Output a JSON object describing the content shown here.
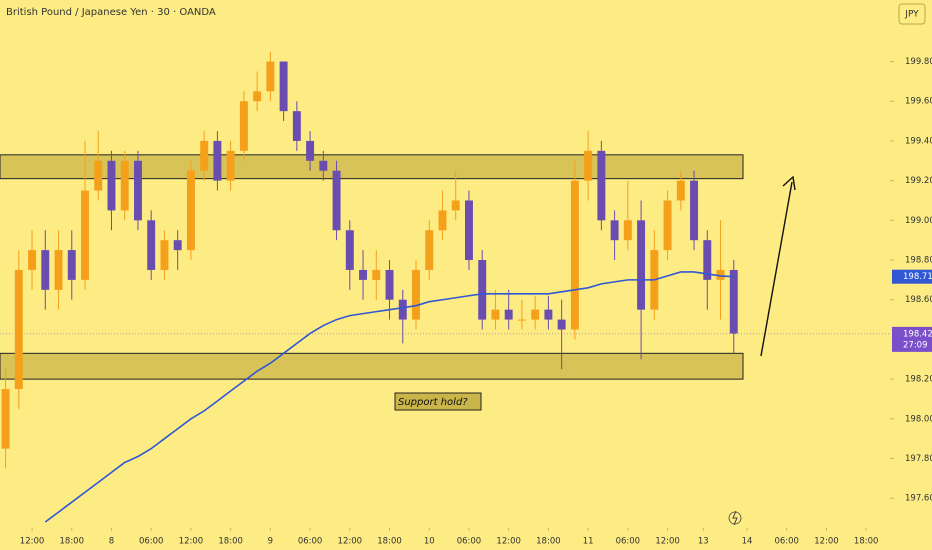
{
  "chart_data": {
    "type": "candlestick",
    "title": "British Pound / Japanese Yen · 30 · OANDA",
    "currency": "JPY",
    "x": [
      0,
      1,
      2,
      3,
      4,
      5,
      6,
      7,
      8,
      9,
      10,
      11,
      12,
      13,
      14,
      15,
      16,
      17,
      18,
      19,
      20,
      21,
      22,
      23,
      24,
      25,
      26,
      27,
      28,
      29,
      30,
      31,
      32,
      33,
      34,
      35,
      36,
      37,
      38,
      39,
      40,
      41,
      42,
      43,
      44,
      45,
      46,
      47,
      48,
      49,
      50,
      51,
      52,
      53,
      54,
      55
    ],
    "open": [
      197.85,
      198.15,
      198.75,
      198.85,
      198.65,
      198.85,
      198.7,
      199.15,
      199.3,
      199.05,
      199.3,
      199.0,
      198.75,
      198.9,
      198.85,
      199.25,
      199.4,
      199.2,
      199.35,
      199.6,
      199.65,
      199.8,
      199.55,
      199.4,
      199.3,
      199.25,
      198.95,
      198.75,
      198.7,
      198.75,
      198.6,
      198.5,
      198.75,
      198.95,
      199.05,
      199.1,
      198.8,
      198.5,
      198.55,
      198.5,
      198.5,
      198.55,
      198.5,
      198.45,
      199.2,
      199.35,
      199.0,
      198.9,
      199.0,
      198.55,
      198.85,
      199.1,
      199.2,
      198.9,
      198.7,
      198.75
    ],
    "high": [
      198.25,
      198.85,
      198.95,
      198.95,
      198.95,
      198.95,
      199.4,
      199.45,
      199.35,
      199.35,
      199.35,
      199.05,
      198.95,
      198.95,
      199.3,
      199.45,
      199.45,
      199.4,
      199.65,
      199.75,
      199.85,
      199.8,
      199.6,
      199.45,
      199.35,
      199.3,
      199.0,
      198.85,
      198.85,
      198.8,
      198.65,
      198.8,
      199.0,
      199.15,
      199.25,
      199.15,
      198.85,
      198.65,
      198.65,
      198.6,
      198.62,
      198.62,
      198.6,
      199.3,
      199.45,
      199.4,
      199.05,
      199.2,
      199.1,
      198.95,
      199.15,
      199.25,
      199.25,
      198.95,
      199.0,
      198.8
    ],
    "low": [
      197.75,
      198.05,
      198.65,
      198.55,
      198.55,
      198.6,
      198.65,
      199.1,
      198.95,
      199.0,
      198.95,
      198.7,
      198.7,
      198.75,
      198.8,
      199.2,
      199.15,
      199.15,
      199.3,
      199.55,
      199.6,
      199.5,
      199.35,
      199.25,
      199.2,
      198.9,
      198.65,
      198.6,
      198.6,
      198.5,
      198.38,
      198.45,
      198.7,
      198.9,
      199.0,
      198.75,
      198.45,
      198.45,
      198.45,
      198.45,
      198.45,
      198.45,
      198.25,
      198.4,
      199.1,
      198.95,
      198.8,
      198.85,
      198.3,
      198.5,
      198.8,
      199.05,
      198.85,
      198.55,
      198.5,
      198.33
    ],
    "close": [
      198.15,
      198.75,
      198.85,
      198.65,
      198.85,
      198.7,
      199.15,
      199.3,
      199.05,
      199.3,
      199.0,
      198.75,
      198.9,
      198.85,
      199.25,
      199.4,
      199.2,
      199.35,
      199.6,
      199.65,
      199.8,
      199.55,
      199.4,
      199.3,
      199.25,
      198.95,
      198.75,
      198.7,
      198.75,
      198.6,
      198.5,
      198.75,
      198.95,
      199.05,
      199.1,
      198.8,
      198.5,
      198.55,
      198.5,
      198.5,
      198.55,
      198.5,
      198.45,
      199.2,
      199.35,
      199.0,
      198.9,
      199.0,
      198.55,
      198.85,
      199.1,
      199.2,
      198.9,
      198.7,
      198.75,
      198.43
    ],
    "up_color": "#f5a01a",
    "down_color": "#6a4db0",
    "ma": {
      "color": "#3157d5",
      "values": [
        null,
        null,
        null,
        197.48,
        197.53,
        197.58,
        197.63,
        197.68,
        197.73,
        197.78,
        197.81,
        197.85,
        197.9,
        197.95,
        198.0,
        198.04,
        198.09,
        198.14,
        198.19,
        198.24,
        198.28,
        198.33,
        198.38,
        198.43,
        198.47,
        198.5,
        198.52,
        198.53,
        198.54,
        198.55,
        198.56,
        198.57,
        198.59,
        198.6,
        198.61,
        198.62,
        198.63,
        198.63,
        198.63,
        198.63,
        198.63,
        198.63,
        198.64,
        198.65,
        198.66,
        198.68,
        198.69,
        198.7,
        198.7,
        198.7,
        198.72,
        198.74,
        198.74,
        198.73,
        198.72,
        198.716
      ],
      "last_label": "198.716"
    },
    "last_price": 198.428,
    "last_price_color": "#7b4fc9",
    "countdown": "27:09",
    "zones": [
      {
        "top": 199.33,
        "bottom": 199.21
      },
      {
        "top": 198.33,
        "bottom": 198.2
      }
    ],
    "zone_color": "#c9b54a",
    "annotation": "Support hold?",
    "xlim": [
      -0.42,
      66.8
    ],
    "ylim": [
      197.45,
      200.11
    ],
    "xticks": [
      {
        "value": 2,
        "label": "12:00"
      },
      {
        "value": 5,
        "label": "18:00"
      },
      {
        "value": 8,
        "label": "8"
      },
      {
        "value": 11,
        "label": "06:00"
      },
      {
        "value": 14,
        "label": "12:00"
      },
      {
        "value": 17,
        "label": "18:00"
      },
      {
        "value": 20,
        "label": "9"
      },
      {
        "value": 23,
        "label": "06:00"
      },
      {
        "value": 26,
        "label": "12:00"
      },
      {
        "value": 29,
        "label": "18:00"
      },
      {
        "value": 32,
        "label": "10"
      },
      {
        "value": 35,
        "label": "06:00"
      },
      {
        "value": 38,
        "label": "12:00"
      },
      {
        "value": 41,
        "label": "18:00"
      },
      {
        "value": 44,
        "label": "11"
      },
      {
        "value": 47,
        "label": "06:00"
      },
      {
        "value": 50,
        "label": "12:00"
      },
      {
        "value": 52.7,
        "label": "13"
      },
      {
        "value": 56,
        "label": "14"
      },
      {
        "value": 59,
        "label": "06:00"
      },
      {
        "value": 62,
        "label": "12:00"
      },
      {
        "value": 65,
        "label": "18:00"
      }
    ],
    "yticks": [
      {
        "value": 197.6,
        "label": "197.600"
      },
      {
        "value": 197.8,
        "label": "197.800"
      },
      {
        "value": 198.0,
        "label": "198.000"
      },
      {
        "value": 198.2,
        "label": "198.200"
      },
      {
        "value": 198.6,
        "label": "198.600"
      },
      {
        "value": 198.8,
        "label": "198.800"
      },
      {
        "value": 199.0,
        "label": "199.000"
      },
      {
        "value": 199.2,
        "label": "199.200"
      },
      {
        "value": 199.4,
        "label": "199.400"
      },
      {
        "value": 199.6,
        "label": "199.600"
      },
      {
        "value": 199.8,
        "label": "199.800"
      }
    ]
  }
}
